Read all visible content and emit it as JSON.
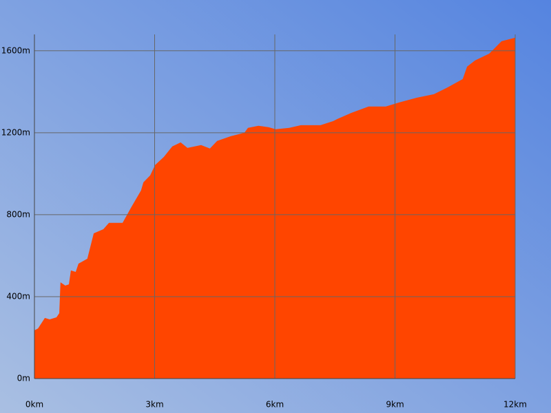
{
  "chart_data": {
    "type": "area",
    "color": "#ff4500",
    "grid": true,
    "x": [
      0,
      0.09,
      0.26,
      0.38,
      0.55,
      0.62,
      0.65,
      0.77,
      0.86,
      0.91,
      1.03,
      1.1,
      1.32,
      1.48,
      1.72,
      1.86,
      2.2,
      2.41,
      2.66,
      2.72,
      2.89,
      3.01,
      3.23,
      3.44,
      3.65,
      3.82,
      4.16,
      4.38,
      4.56,
      4.9,
      5.24,
      5.33,
      5.59,
      5.85,
      6.02,
      6.36,
      6.65,
      7.14,
      7.46,
      7.56,
      7.91,
      8.34,
      8.77,
      9.11,
      9.54,
      9.97,
      10.32,
      10.69,
      10.8,
      11.0,
      11.35,
      11.66,
      11.86,
      12.0
    ],
    "values": [
      235,
      245,
      296,
      289,
      299,
      319,
      470,
      454,
      460,
      528,
      521,
      561,
      585,
      709,
      729,
      760,
      760,
      834,
      918,
      958,
      992,
      1042,
      1082,
      1133,
      1153,
      1126,
      1140,
      1123,
      1160,
      1183,
      1200,
      1224,
      1234,
      1227,
      1217,
      1224,
      1237,
      1237,
      1257,
      1267,
      1297,
      1328,
      1328,
      1348,
      1371,
      1388,
      1422,
      1462,
      1523,
      1553,
      1586,
      1647,
      1657,
      1664
    ],
    "xlim": [
      0,
      12
    ],
    "xticks": [
      {
        "value": 0,
        "label": "0km"
      },
      {
        "value": 3,
        "label": "3km"
      },
      {
        "value": 6,
        "label": "6km"
      },
      {
        "value": 9,
        "label": "9km"
      },
      {
        "value": 12,
        "label": "12km"
      }
    ],
    "ylim": [
      0,
      1680
    ],
    "yticks": [
      {
        "value": 0,
        "label": "0m"
      },
      {
        "value": 400,
        "label": "400m"
      },
      {
        "value": 800,
        "label": "800m"
      },
      {
        "value": 1200,
        "label": "1200m"
      },
      {
        "value": 1600,
        "label": "1600m"
      }
    ]
  }
}
